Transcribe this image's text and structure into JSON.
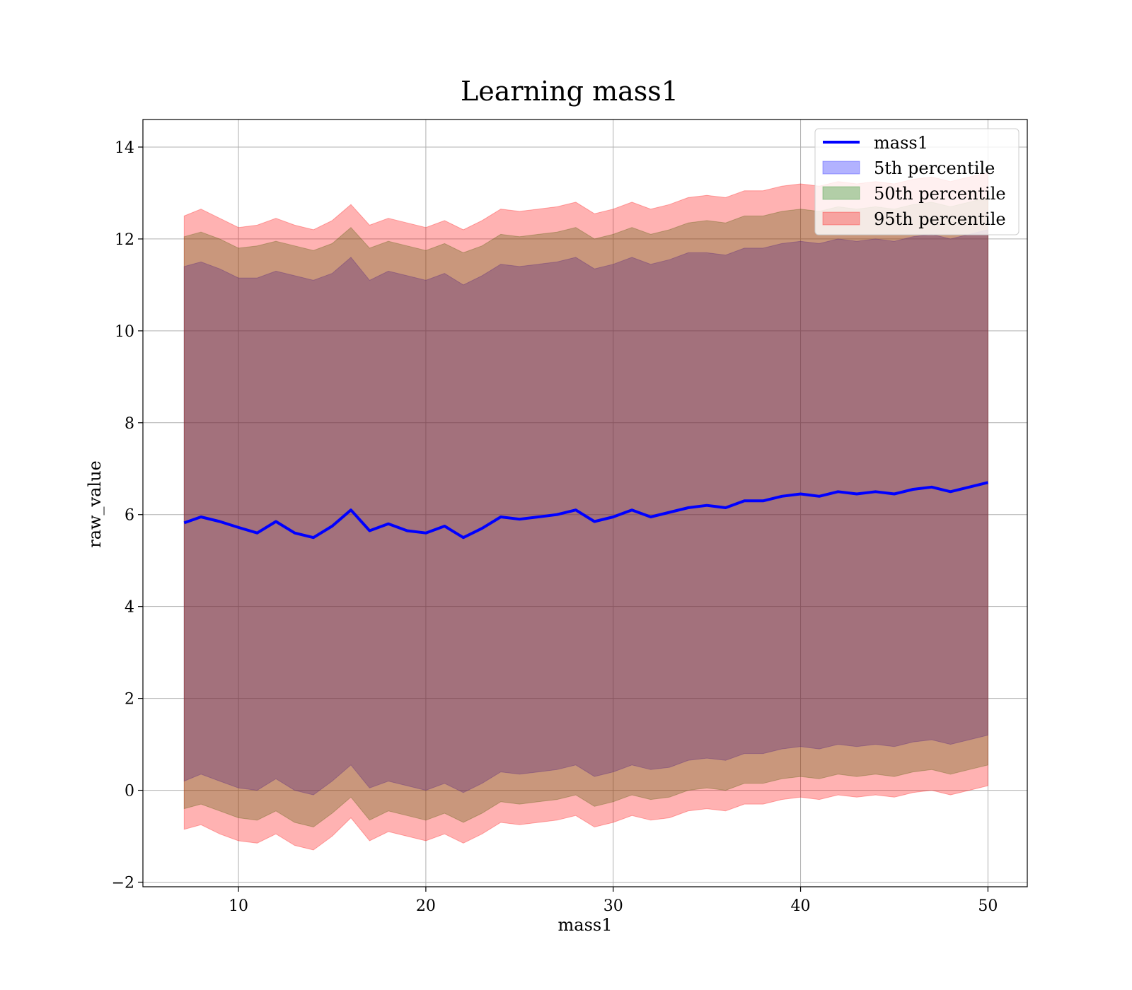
{
  "chart_data": {
    "type": "area",
    "title": "Learning mass1",
    "xlabel": "mass1",
    "ylabel": "raw_value",
    "xlim": [
      4.9,
      52.1
    ],
    "ylim": [
      -2.1,
      14.6
    ],
    "x_ticks": [
      10,
      20,
      30,
      40,
      50
    ],
    "y_ticks": [
      -2,
      0,
      2,
      4,
      6,
      8,
      10,
      12,
      14
    ],
    "x_tick_labels": [
      "10",
      "20",
      "30",
      "40",
      "50"
    ],
    "y_tick_labels": [
      "−2",
      "0",
      "2",
      "4",
      "6",
      "8",
      "10",
      "12",
      "14"
    ],
    "grid": true,
    "legend_position": "upper right",
    "x": [
      7.1,
      8,
      9,
      10,
      11,
      12,
      13,
      14,
      15,
      16,
      17,
      18,
      19,
      20,
      21,
      22,
      23,
      24,
      25,
      26,
      27,
      28,
      29,
      30,
      31,
      32,
      33,
      34,
      35,
      36,
      37,
      38,
      39,
      40,
      41,
      42,
      43,
      44,
      45,
      46,
      47,
      48,
      49,
      50
    ],
    "line": {
      "name": "mass1",
      "color": "#0000ff",
      "values": [
        5.82,
        5.95,
        5.85,
        5.72,
        5.6,
        5.85,
        5.6,
        5.5,
        5.75,
        6.1,
        5.65,
        5.8,
        5.65,
        5.6,
        5.75,
        5.5,
        5.7,
        5.95,
        5.9,
        5.95,
        6.0,
        6.1,
        5.85,
        5.95,
        6.1,
        5.95,
        6.05,
        6.15,
        6.2,
        6.15,
        6.3,
        6.3,
        6.4,
        6.45,
        6.4,
        6.5,
        6.45,
        6.5,
        6.45,
        6.55,
        6.6,
        6.5,
        6.6,
        6.7
      ]
    },
    "bands": [
      {
        "name": "5th percentile",
        "color": "#0000ff",
        "upper": [
          11.4,
          11.5,
          11.35,
          11.15,
          11.15,
          11.3,
          11.2,
          11.1,
          11.25,
          11.6,
          11.1,
          11.3,
          11.2,
          11.1,
          11.25,
          11.0,
          11.2,
          11.45,
          11.4,
          11.45,
          11.5,
          11.6,
          11.35,
          11.45,
          11.6,
          11.45,
          11.55,
          11.7,
          11.7,
          11.65,
          11.8,
          11.8,
          11.9,
          11.95,
          11.9,
          12.0,
          11.95,
          12.0,
          11.95,
          12.05,
          12.1,
          12.0,
          12.1,
          12.2
        ],
        "lower": [
          0.2,
          0.35,
          0.2,
          0.05,
          0.0,
          0.25,
          0.0,
          -0.1,
          0.2,
          0.55,
          0.05,
          0.2,
          0.1,
          0.0,
          0.15,
          -0.05,
          0.15,
          0.4,
          0.35,
          0.4,
          0.45,
          0.55,
          0.3,
          0.4,
          0.55,
          0.45,
          0.5,
          0.65,
          0.7,
          0.65,
          0.8,
          0.8,
          0.9,
          0.95,
          0.9,
          1.0,
          0.95,
          1.0,
          0.95,
          1.05,
          1.1,
          1.0,
          1.1,
          1.2
        ]
      },
      {
        "name": "50th percentile",
        "color": "#008000",
        "upper": [
          12.05,
          12.15,
          12.0,
          11.8,
          11.85,
          11.95,
          11.85,
          11.75,
          11.9,
          12.25,
          11.8,
          11.95,
          11.85,
          11.75,
          11.9,
          11.7,
          11.85,
          12.1,
          12.05,
          12.1,
          12.15,
          12.25,
          12.0,
          12.1,
          12.25,
          12.1,
          12.2,
          12.35,
          12.4,
          12.35,
          12.5,
          12.5,
          12.6,
          12.65,
          12.6,
          12.7,
          12.65,
          12.7,
          12.65,
          12.75,
          12.8,
          12.7,
          12.8,
          12.9
        ],
        "lower": [
          -0.4,
          -0.3,
          -0.45,
          -0.6,
          -0.65,
          -0.45,
          -0.7,
          -0.8,
          -0.5,
          -0.15,
          -0.65,
          -0.45,
          -0.55,
          -0.65,
          -0.5,
          -0.7,
          -0.5,
          -0.25,
          -0.3,
          -0.25,
          -0.2,
          -0.1,
          -0.35,
          -0.25,
          -0.1,
          -0.2,
          -0.15,
          0.0,
          0.05,
          0.0,
          0.15,
          0.15,
          0.25,
          0.3,
          0.25,
          0.35,
          0.3,
          0.35,
          0.3,
          0.4,
          0.45,
          0.35,
          0.45,
          0.55
        ]
      },
      {
        "name": "95th percentile",
        "color": "#ff0000",
        "upper": [
          12.5,
          12.65,
          12.45,
          12.25,
          12.3,
          12.45,
          12.3,
          12.2,
          12.4,
          12.75,
          12.3,
          12.45,
          12.35,
          12.25,
          12.4,
          12.2,
          12.4,
          12.65,
          12.6,
          12.65,
          12.7,
          12.8,
          12.55,
          12.65,
          12.8,
          12.65,
          12.75,
          12.9,
          12.95,
          12.9,
          13.05,
          13.05,
          13.15,
          13.2,
          13.15,
          13.25,
          13.2,
          13.25,
          13.2,
          13.3,
          13.35,
          13.25,
          13.35,
          13.45
        ],
        "lower": [
          -0.85,
          -0.75,
          -0.95,
          -1.1,
          -1.15,
          -0.95,
          -1.2,
          -1.3,
          -1.0,
          -0.6,
          -1.1,
          -0.9,
          -1.0,
          -1.1,
          -0.95,
          -1.15,
          -0.95,
          -0.7,
          -0.75,
          -0.7,
          -0.65,
          -0.55,
          -0.8,
          -0.7,
          -0.55,
          -0.65,
          -0.6,
          -0.45,
          -0.4,
          -0.45,
          -0.3,
          -0.3,
          -0.2,
          -0.15,
          -0.2,
          -0.1,
          -0.15,
          -0.1,
          -0.15,
          -0.05,
          0.0,
          -0.1,
          0.0,
          0.1
        ]
      }
    ],
    "legend": [
      "mass1",
      "5th percentile",
      "50th percentile",
      "95th percentile"
    ]
  }
}
